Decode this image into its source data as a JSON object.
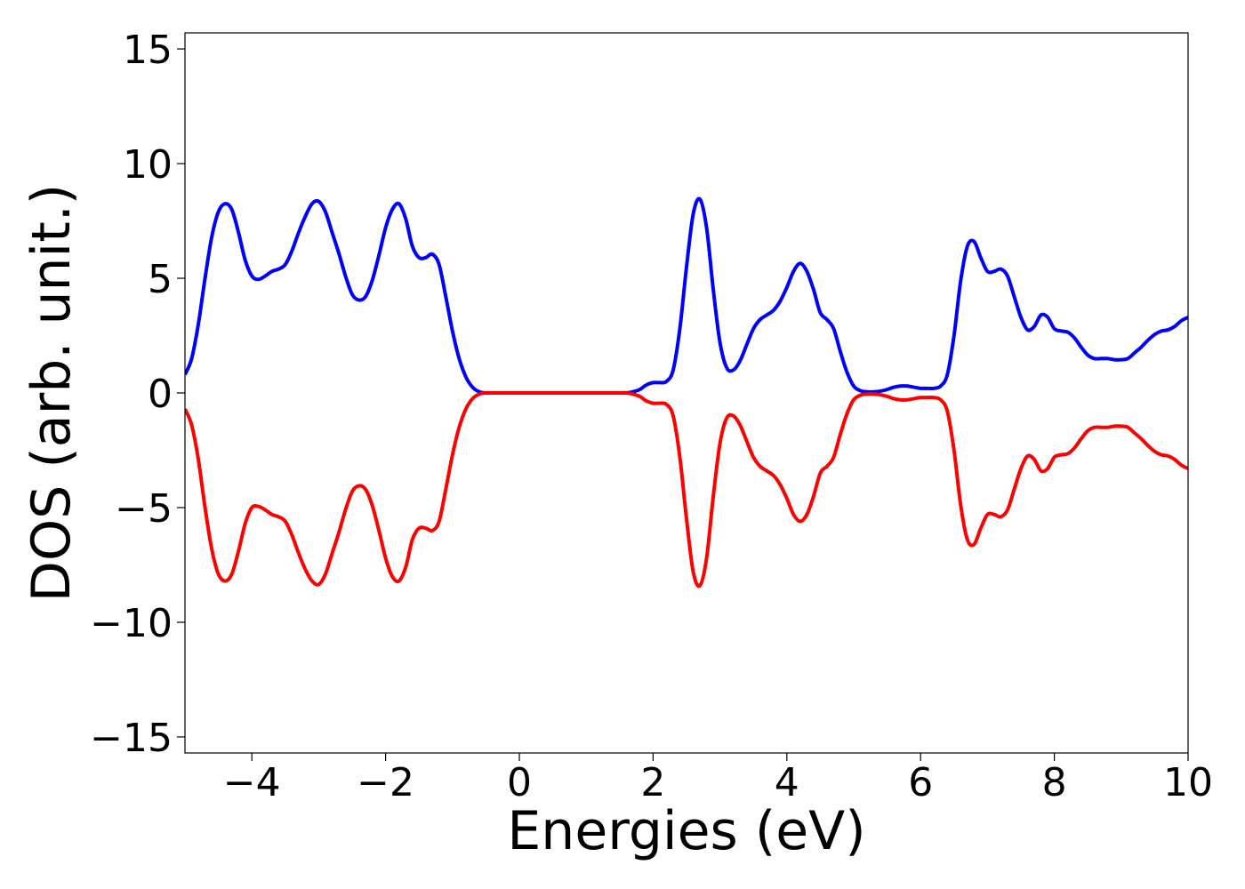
{
  "chart_data": {
    "type": "line",
    "x_label": "Energies (eV)",
    "y_label": "DOS (arb. unit.)",
    "xlim": [
      -5,
      10
    ],
    "ylim": [
      -15.7,
      15.7
    ],
    "xticks": [
      {
        "value": -4,
        "label": "−4"
      },
      {
        "value": -2,
        "label": "−2"
      },
      0,
      2,
      4,
      6,
      8,
      10
    ],
    "yticks": [
      {
        "value": -15,
        "label": "−15"
      },
      {
        "value": -10,
        "label": "−10"
      },
      {
        "value": -5,
        "label": "−5"
      },
      0,
      5,
      10,
      15
    ],
    "grid": false,
    "x": [
      -5.0,
      -4.9,
      -4.8,
      -4.7,
      -4.6,
      -4.5,
      -4.4,
      -4.3,
      -4.2,
      -4.1,
      -4.0,
      -3.9,
      -3.8,
      -3.7,
      -3.6,
      -3.5,
      -3.4,
      -3.3,
      -3.2,
      -3.1,
      -3.0,
      -2.9,
      -2.8,
      -2.7,
      -2.6,
      -2.5,
      -2.4,
      -2.3,
      -2.2,
      -2.1,
      -2.0,
      -1.9,
      -1.8,
      -1.7,
      -1.6,
      -1.5,
      -1.4,
      -1.3,
      -1.2,
      -1.1,
      -1.0,
      -0.9,
      -0.8,
      -0.7,
      -0.6,
      -0.5,
      -0.4,
      -0.3,
      -0.2,
      -0.1,
      0.0,
      0.1,
      0.2,
      0.3,
      0.4,
      0.5,
      0.6,
      0.7,
      0.8,
      0.9,
      1.0,
      1.1,
      1.2,
      1.3,
      1.4,
      1.5,
      1.6,
      1.7,
      1.8,
      1.9,
      2.0,
      2.1,
      2.2,
      2.3,
      2.4,
      2.5,
      2.6,
      2.7,
      2.8,
      2.9,
      3.0,
      3.1,
      3.2,
      3.3,
      3.4,
      3.5,
      3.6,
      3.7,
      3.8,
      3.9,
      4.0,
      4.1,
      4.2,
      4.3,
      4.4,
      4.5,
      4.6,
      4.7,
      4.8,
      4.9,
      5.0,
      5.1,
      5.2,
      5.3,
      5.4,
      5.5,
      5.6,
      5.7,
      5.8,
      5.9,
      6.0,
      6.1,
      6.2,
      6.3,
      6.4,
      6.5,
      6.6,
      6.7,
      6.8,
      6.9,
      7.0,
      7.1,
      7.2,
      7.3,
      7.4,
      7.5,
      7.6,
      7.7,
      7.8,
      7.9,
      8.0,
      8.1,
      8.2,
      8.3,
      8.4,
      8.5,
      8.6,
      8.7,
      8.8,
      8.9,
      9.0,
      9.1,
      9.2,
      9.3,
      9.4,
      9.5,
      9.6,
      9.7,
      9.8,
      9.9,
      10.0
    ],
    "series": [
      {
        "color": "#0000ff",
        "values": [
          0.8,
          1.5,
          3.0,
          5.0,
          6.8,
          7.9,
          8.25,
          8.0,
          7.0,
          5.8,
          5.1,
          4.95,
          5.1,
          5.3,
          5.4,
          5.6,
          6.2,
          7.0,
          7.7,
          8.25,
          8.35,
          7.9,
          7.0,
          6.1,
          5.1,
          4.3,
          4.05,
          4.2,
          4.9,
          6.0,
          7.2,
          8.0,
          8.25,
          7.6,
          6.4,
          5.9,
          5.9,
          6.05,
          5.6,
          4.2,
          2.7,
          1.5,
          0.7,
          0.25,
          0.05,
          0,
          0,
          0,
          0,
          0,
          0,
          0,
          0,
          0,
          0,
          0,
          0,
          0,
          0,
          0,
          0,
          0,
          0,
          0,
          0,
          0,
          0,
          0.05,
          0.15,
          0.35,
          0.45,
          0.45,
          0.5,
          1.0,
          2.8,
          5.5,
          7.8,
          8.45,
          7.2,
          4.5,
          2.2,
          1.1,
          1.0,
          1.4,
          2.1,
          2.8,
          3.2,
          3.4,
          3.6,
          4.0,
          4.6,
          5.3,
          5.65,
          5.3,
          4.5,
          3.5,
          3.2,
          2.8,
          1.8,
          0.9,
          0.3,
          0.1,
          0.05,
          0.05,
          0.08,
          0.15,
          0.25,
          0.3,
          0.3,
          0.25,
          0.2,
          0.2,
          0.2,
          0.3,
          0.8,
          2.5,
          4.9,
          6.4,
          6.6,
          5.9,
          5.3,
          5.3,
          5.4,
          5.1,
          4.2,
          3.3,
          2.75,
          2.9,
          3.4,
          3.3,
          2.8,
          2.7,
          2.65,
          2.4,
          2.0,
          1.65,
          1.5,
          1.5,
          1.5,
          1.45,
          1.45,
          1.5,
          1.75,
          2.0,
          2.3,
          2.55,
          2.7,
          2.75,
          2.9,
          3.15,
          3.3
        ]
      },
      {
        "color": "#ff0000",
        "values": [
          -0.7,
          -1.4,
          -2.9,
          -5.0,
          -6.8,
          -7.9,
          -8.2,
          -7.9,
          -6.9,
          -5.7,
          -5.0,
          -4.95,
          -5.1,
          -5.3,
          -5.4,
          -5.6,
          -6.2,
          -7.0,
          -7.7,
          -8.2,
          -8.35,
          -7.9,
          -7.0,
          -6.1,
          -5.1,
          -4.3,
          -4.05,
          -4.2,
          -4.9,
          -6.0,
          -7.2,
          -8.0,
          -8.2,
          -7.6,
          -6.4,
          -5.9,
          -5.9,
          -6.0,
          -5.6,
          -4.2,
          -2.7,
          -1.5,
          -0.7,
          -0.25,
          -0.05,
          0,
          0,
          0,
          0,
          0,
          0,
          0,
          0,
          0,
          0,
          0,
          0,
          0,
          0,
          0,
          0,
          0,
          0,
          0,
          0,
          0,
          0,
          -0.05,
          -0.15,
          -0.35,
          -0.45,
          -0.45,
          -0.5,
          -1.0,
          -2.8,
          -5.5,
          -7.8,
          -8.4,
          -7.2,
          -4.5,
          -2.2,
          -1.1,
          -1.0,
          -1.4,
          -2.1,
          -2.8,
          -3.2,
          -3.4,
          -3.6,
          -4.0,
          -4.6,
          -5.3,
          -5.6,
          -5.3,
          -4.5,
          -3.5,
          -3.2,
          -2.8,
          -1.8,
          -0.9,
          -0.3,
          -0.1,
          -0.05,
          -0.05,
          -0.08,
          -0.15,
          -0.25,
          -0.3,
          -0.3,
          -0.25,
          -0.2,
          -0.2,
          -0.2,
          -0.3,
          -0.8,
          -2.5,
          -4.9,
          -6.4,
          -6.6,
          -5.9,
          -5.3,
          -5.3,
          -5.4,
          -5.1,
          -4.2,
          -3.3,
          -2.75,
          -2.9,
          -3.4,
          -3.3,
          -2.8,
          -2.7,
          -2.65,
          -2.4,
          -2.0,
          -1.65,
          -1.5,
          -1.5,
          -1.5,
          -1.45,
          -1.45,
          -1.5,
          -1.75,
          -2.0,
          -2.3,
          -2.55,
          -2.7,
          -2.75,
          -2.9,
          -3.15,
          -3.3
        ]
      }
    ]
  }
}
